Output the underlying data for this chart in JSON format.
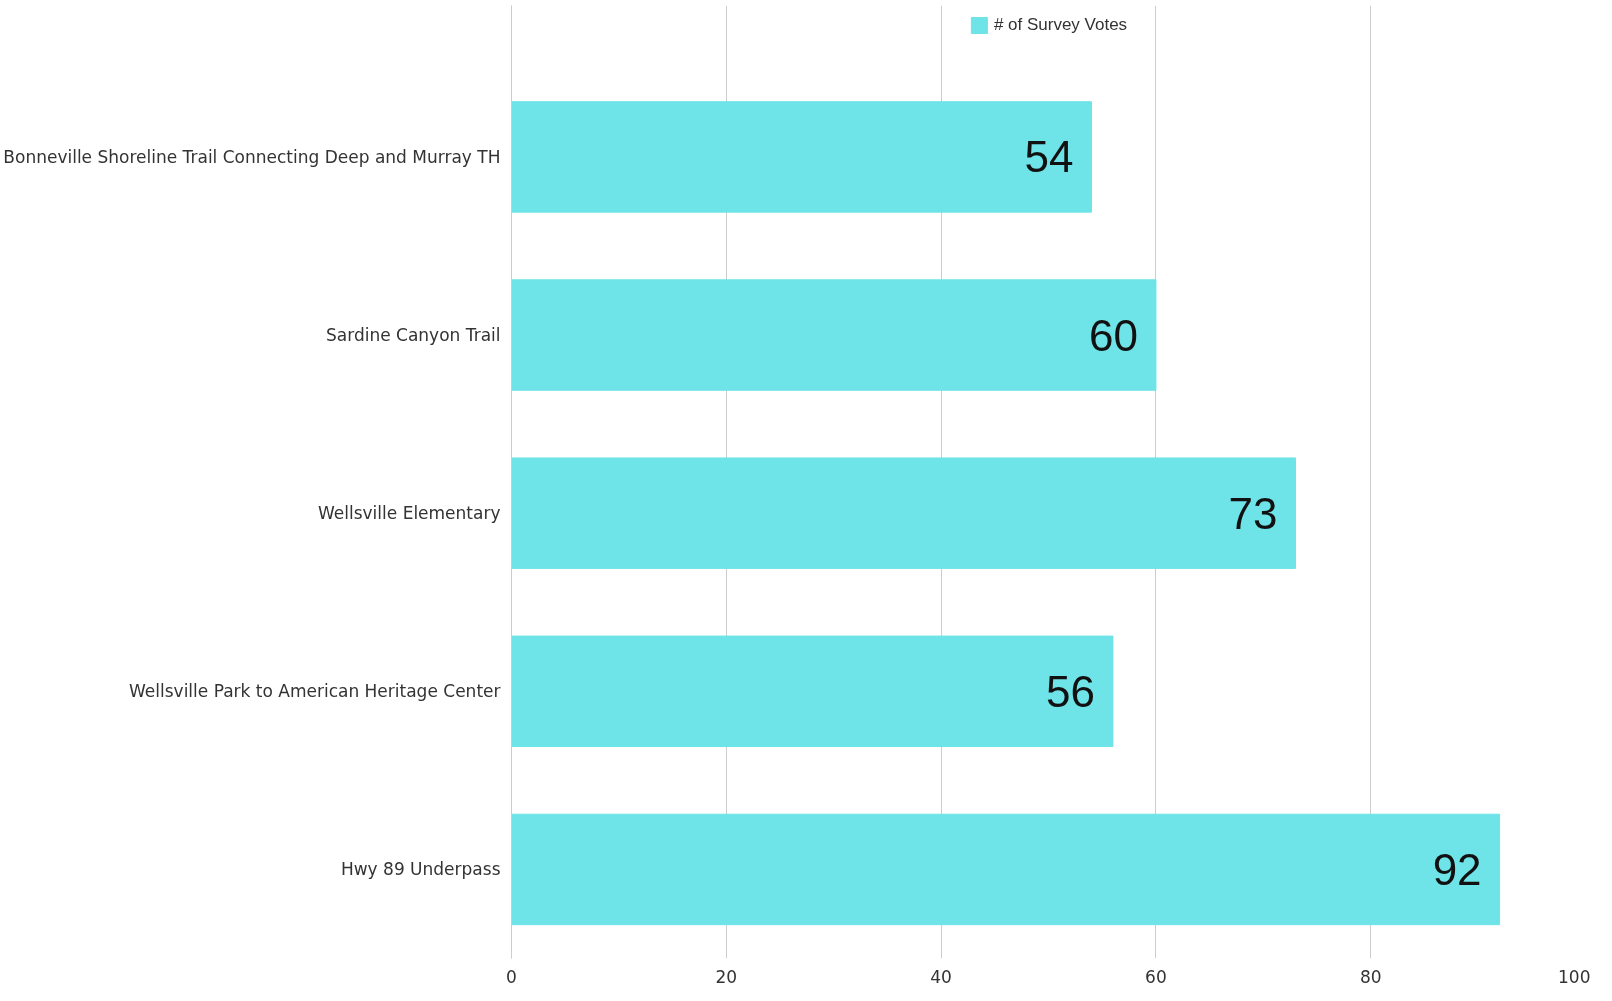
{
  "chart_data": {
    "type": "bar",
    "orientation": "horizontal",
    "categories": [
      "Bonneville Shoreline Trail Connecting Deep and Murray TH",
      "Sardine Canyon Trail",
      "Wellsville Elementary",
      "Wellsville Park to American Heritage Center",
      "Hwy 89 Underpass"
    ],
    "series": [
      {
        "name": "# of Survey Votes",
        "color": "#6ee3e8",
        "values": [
          54,
          60,
          73,
          56,
          92
        ]
      }
    ],
    "xlim": [
      0,
      100
    ],
    "xticks": [
      0,
      20,
      40,
      60,
      80,
      100
    ],
    "grid": "x",
    "legend": "top",
    "data_labels": true
  }
}
